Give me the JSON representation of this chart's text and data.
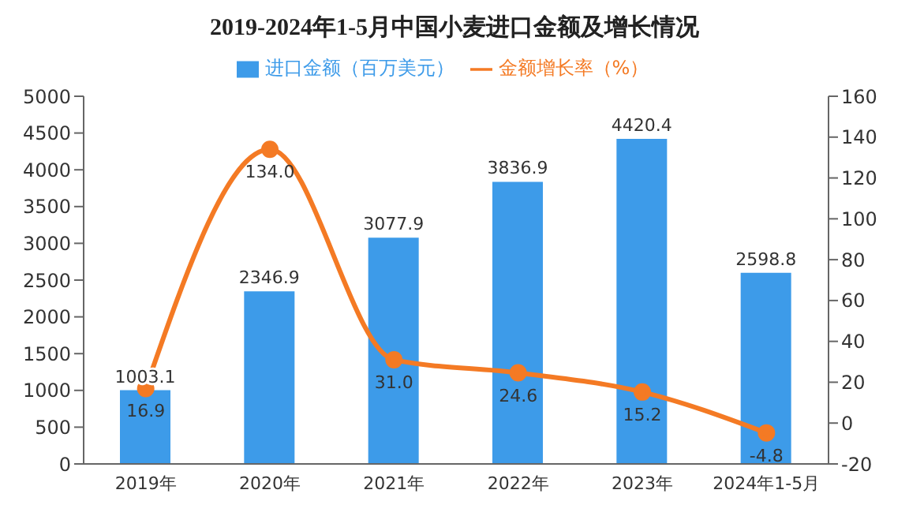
{
  "chart_data": {
    "type": "bar",
    "title": "2019-2024年1-5月中国小麦进口金额及增长情况",
    "categories": [
      "2019年",
      "2020年",
      "2021年",
      "2022年",
      "2023年",
      "2024年1-5月"
    ],
    "series": [
      {
        "name": "进口金额（百万美元）",
        "color": "#3d9be9",
        "values": [
          1003.1,
          2346.9,
          3077.9,
          3836.9,
          4420.4,
          2598.8
        ],
        "value_labels": [
          "1003.1",
          "2346.9",
          "3077.9",
          "3836.9",
          "4420.4",
          "2598.8"
        ]
      },
      {
        "name": "金额增长率（%）",
        "type": "line",
        "axis": "y2",
        "color": "#f47a24",
        "marker": "circle",
        "values": [
          16.9,
          134.0,
          31.0,
          24.6,
          15.2,
          -4.8
        ],
        "value_labels": [
          "16.9",
          "134.0",
          "31.0",
          "24.6",
          "15.2",
          "-4.8"
        ]
      }
    ],
    "ylim": [
      0,
      5000
    ],
    "yticks": [
      0,
      500,
      1000,
      1500,
      2000,
      2500,
      3000,
      3500,
      4000,
      4500,
      5000
    ],
    "y2lim": [
      -20,
      160
    ],
    "y2ticks": [
      -20,
      0,
      20,
      40,
      60,
      80,
      100,
      120,
      140,
      160
    ],
    "legend": "top",
    "grid": false
  }
}
